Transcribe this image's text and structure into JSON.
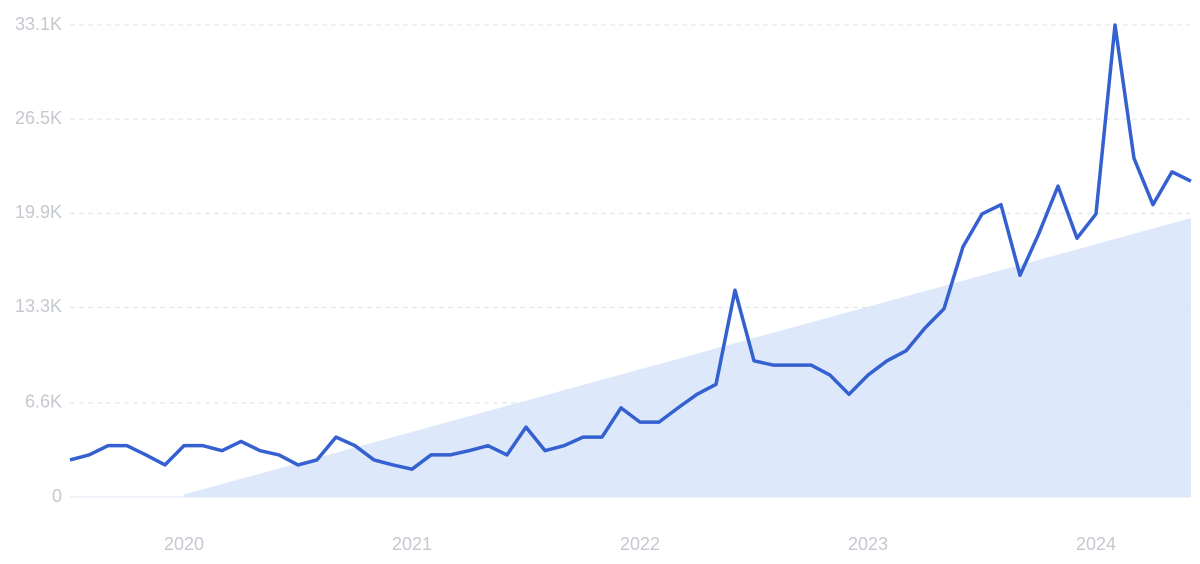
{
  "chart_data": {
    "type": "line",
    "categories": [
      null,
      null,
      null,
      null,
      null,
      null,
      "2020",
      null,
      null,
      null,
      null,
      null,
      null,
      null,
      null,
      null,
      null,
      null,
      "2021",
      null,
      null,
      null,
      null,
      null,
      null,
      null,
      null,
      null,
      null,
      null,
      "2022",
      null,
      null,
      null,
      null,
      null,
      null,
      null,
      null,
      null,
      null,
      null,
      "2023",
      null,
      null,
      null,
      null,
      null,
      null,
      null,
      null,
      null,
      null,
      null,
      "2024",
      null,
      null,
      null,
      null,
      null
    ],
    "series": [
      {
        "color": "#3460d0",
        "values": [
          2600,
          2950,
          3600,
          3600,
          2950,
          2250,
          3600,
          3600,
          3250,
          3900,
          3250,
          2950,
          2250,
          2600,
          4200,
          3600,
          2600,
          2250,
          1950,
          2950,
          2950,
          3250,
          3600,
          2950,
          4900,
          3250,
          3600,
          4200,
          4200,
          6250,
          5250,
          5250,
          6250,
          7200,
          7900,
          14500,
          9550,
          9250,
          9250,
          9250,
          8550,
          7200,
          8550,
          9550,
          10250,
          11850,
          13200,
          17550,
          19850,
          20500,
          15550,
          18500,
          21800,
          18150,
          19850,
          33100,
          23750,
          20500,
          22800,
          22150
        ]
      },
      {
        "color": "#dde9fb",
        "style": "area",
        "values": [
          null,
          null,
          null,
          null,
          null,
          null,
          180,
          546,
          911,
          1277,
          1643,
          2008,
          2374,
          2740,
          3105,
          3471,
          3837,
          4202,
          4568,
          4934,
          5299,
          5665,
          6031,
          6396,
          6762,
          7128,
          7493,
          7859,
          8225,
          8590,
          8956,
          9322,
          9687,
          10053,
          10419,
          10784,
          11150,
          11516,
          11881,
          12247,
          12613,
          12978,
          13344,
          13710,
          14075,
          14441,
          14807,
          15172,
          15538,
          15904,
          16269,
          16635,
          17001,
          17366,
          17732,
          18098,
          18463,
          18829,
          19195,
          19560
        ]
      }
    ],
    "ylim": [
      0,
      33100
    ],
    "yticks": [
      0,
      {
        "value": 6600,
        "label": "6.6K"
      },
      {
        "value": 13300,
        "label": "13.3K"
      },
      {
        "value": 19900,
        "label": "19.9K"
      },
      {
        "value": 26500,
        "label": "26.5K"
      },
      {
        "value": 33100,
        "label": "33.1K"
      }
    ],
    "grid": true
  }
}
